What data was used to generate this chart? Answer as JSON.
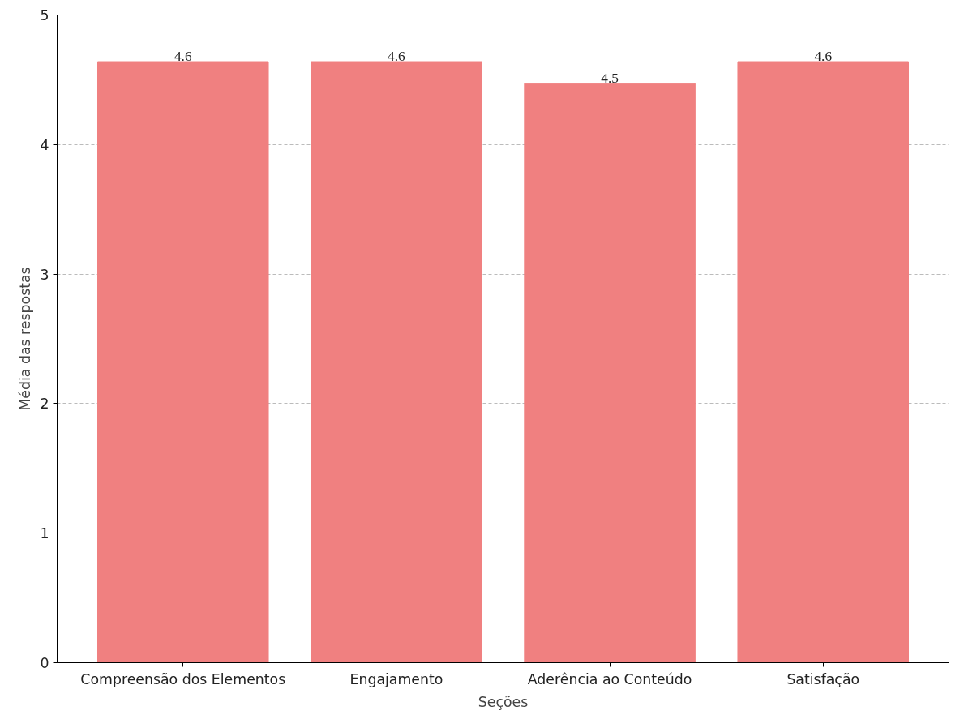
{
  "chart_data": {
    "type": "bar",
    "xlabel": "Seções",
    "ylabel": "Média das respostas",
    "categories": [
      "Compreensão dos Elementos",
      "Engajamento",
      "Aderência ao Conteúdo",
      "Satisfação"
    ],
    "values": [
      4.64,
      4.64,
      4.47,
      4.64
    ],
    "value_labels": [
      "4.6",
      "4.6",
      "4.5",
      "4.6"
    ],
    "color": "#f08080",
    "ylim": [
      0,
      5
    ],
    "yticks": [
      0,
      1,
      2,
      3,
      4,
      5
    ],
    "grid": "y"
  }
}
